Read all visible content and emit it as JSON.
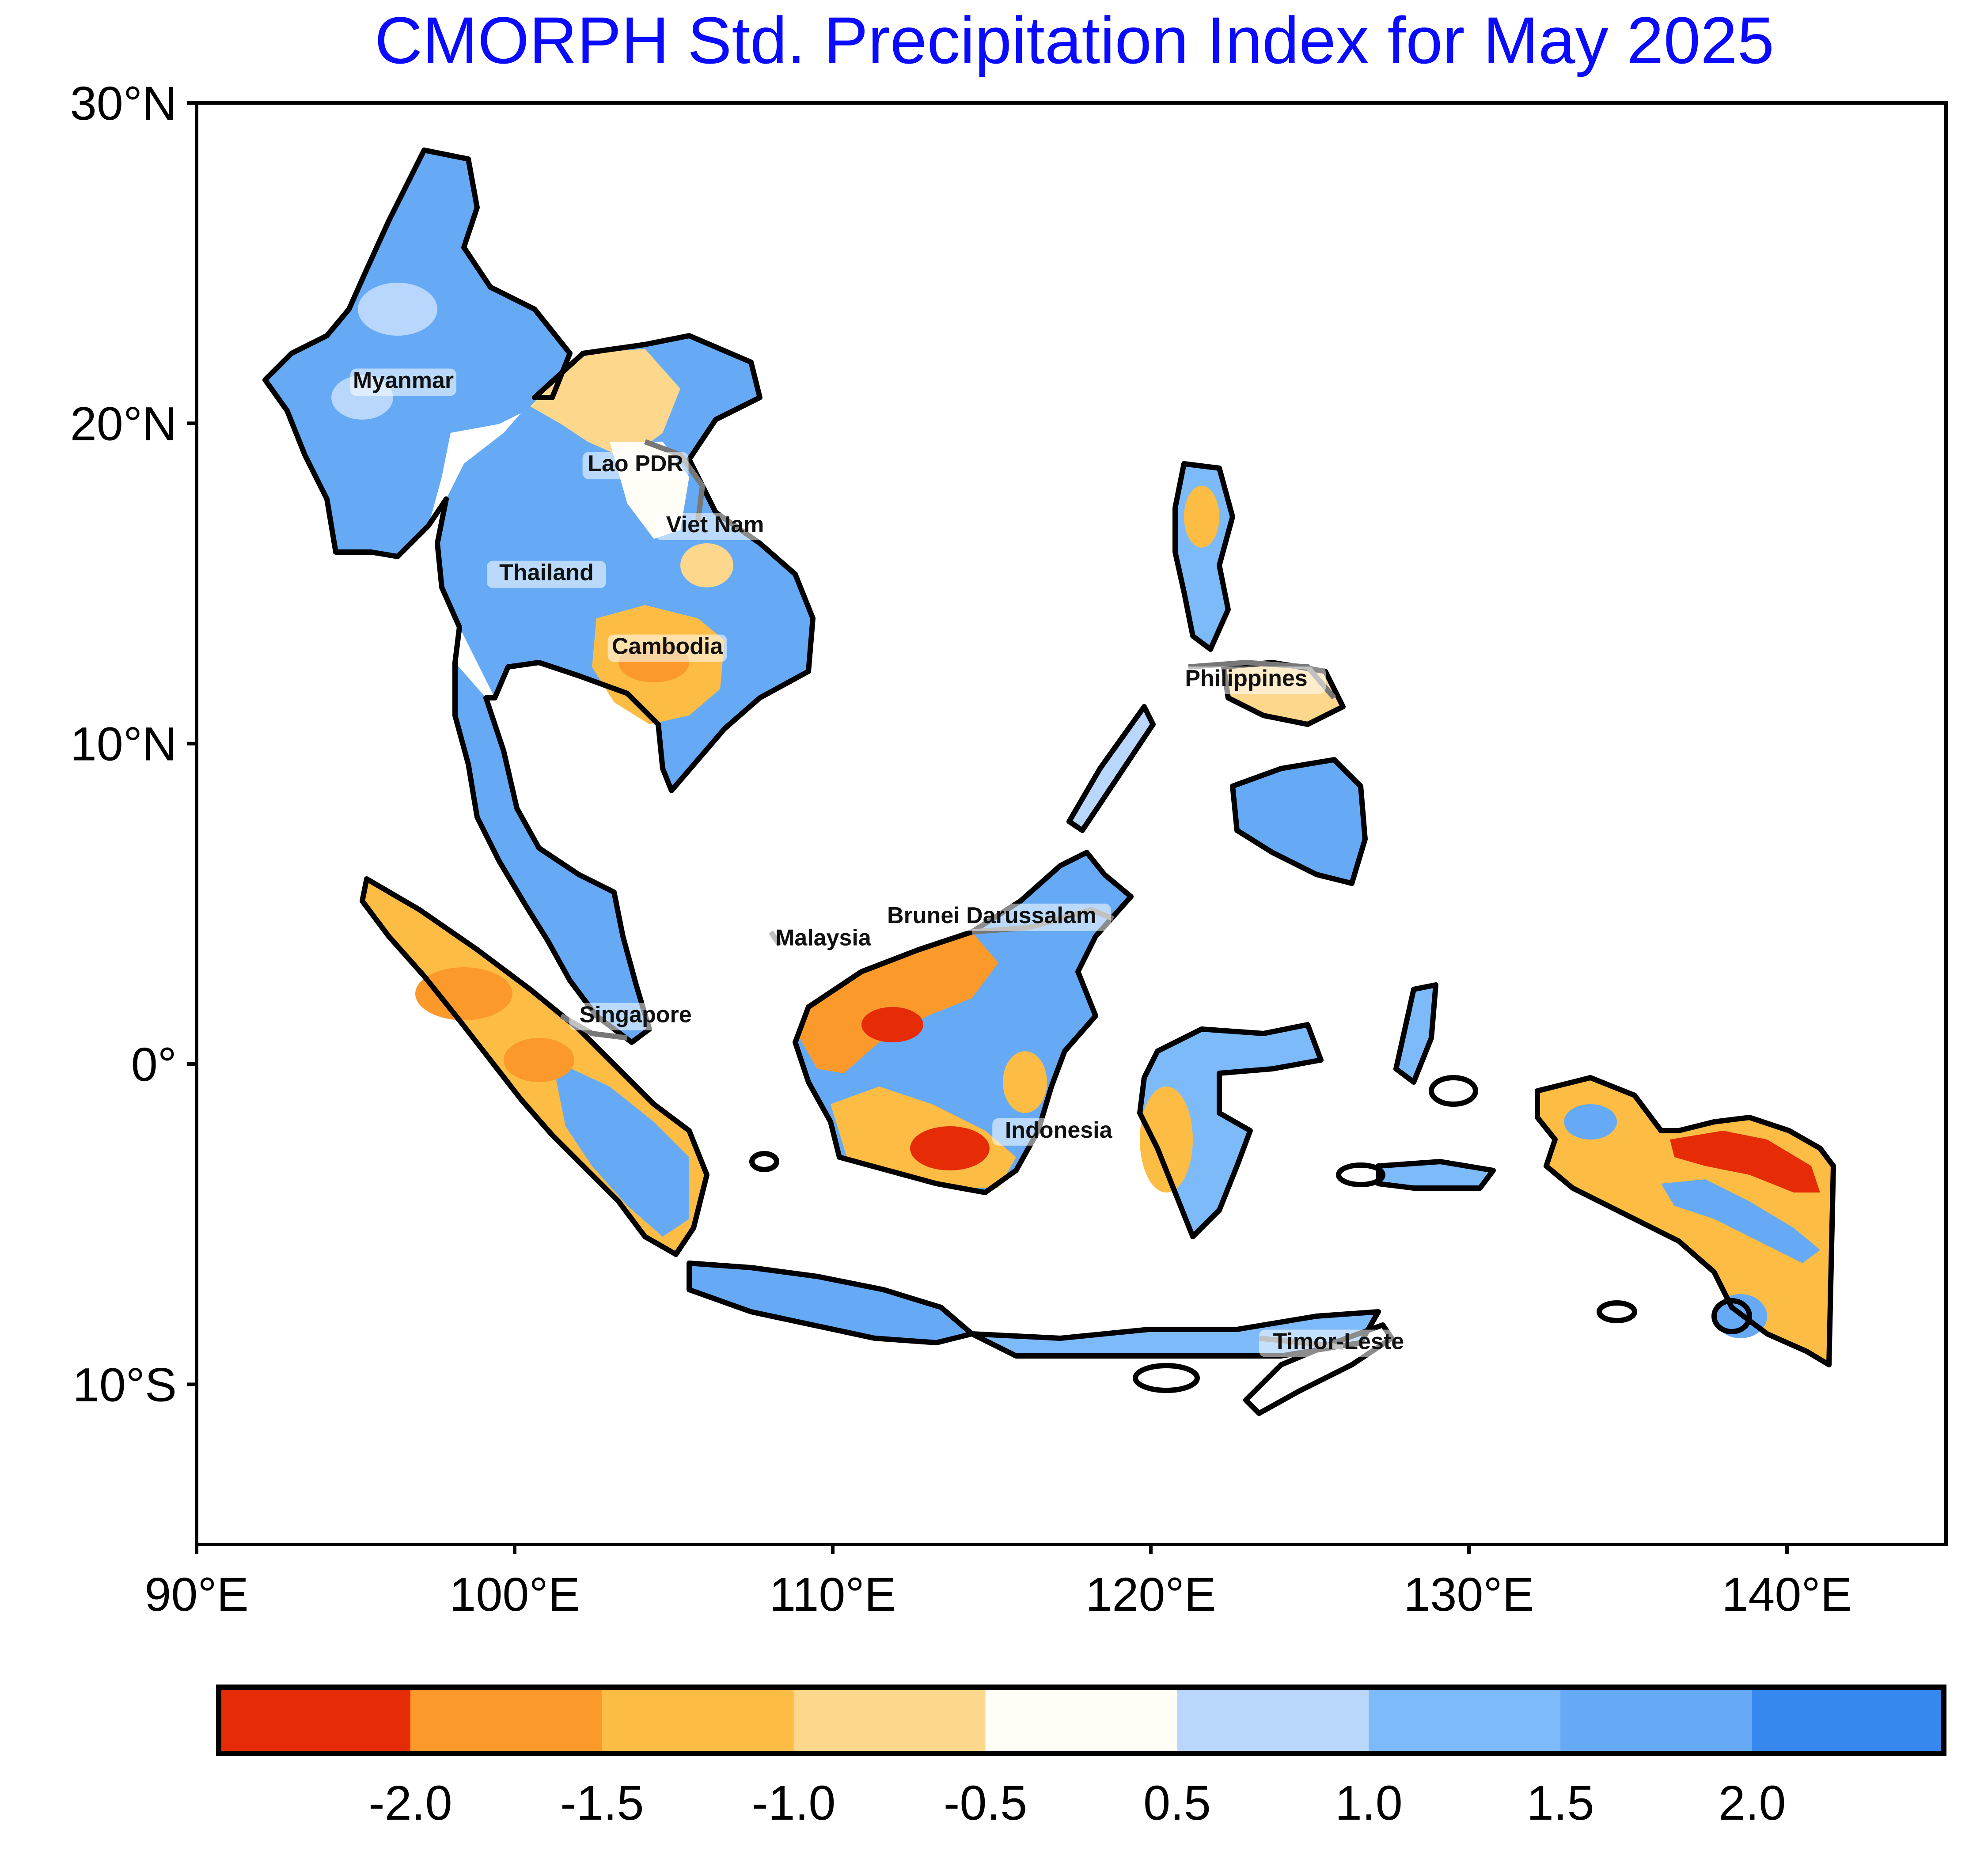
{
  "title": "CMORPH Std. Precipitation Index for May 2025",
  "latitude_ticks": [
    "30°N",
    "20°N",
    "10°N",
    "0°",
    "10°S"
  ],
  "longitude_ticks": [
    "90°E",
    "100°E",
    "110°E",
    "120°E",
    "130°E",
    "140°E"
  ],
  "extent": {
    "lon_min": 90,
    "lon_max": 145,
    "lat_min": -15,
    "lat_max": 30
  },
  "country_labels": [
    {
      "name": "Myanmar",
      "lon": 96.5,
      "lat": 21.1
    },
    {
      "name": "Lao PDR",
      "lon": 103.8,
      "lat": 18.5
    },
    {
      "name": "Viet Nam",
      "lon": 106.3,
      "lat": 16.6
    },
    {
      "name": "Thailand",
      "lon": 101.0,
      "lat": 15.1
    },
    {
      "name": "Cambodia",
      "lon": 104.8,
      "lat": 12.8
    },
    {
      "name": "Philippines",
      "lon": 123.0,
      "lat": 11.8
    },
    {
      "name": "Brunei Darussalam",
      "lon": 115.0,
      "lat": 4.4
    },
    {
      "name": "Malaysia",
      "lon": 109.7,
      "lat": 3.7
    },
    {
      "name": "Singapore",
      "lon": 103.8,
      "lat": 1.3
    },
    {
      "name": "Indonesia",
      "lon": 117.1,
      "lat": -2.3
    },
    {
      "name": "Timor-Leste",
      "lon": 125.9,
      "lat": -8.9
    }
  ],
  "colorbar": {
    "bins": [
      {
        "color": "#e52c06"
      },
      {
        "color": "#fb9a2b"
      },
      {
        "color": "#fdbd45"
      },
      {
        "color": "#fdd78c"
      },
      {
        "color": "#fffdf6"
      },
      {
        "color": "#b9d6fd"
      },
      {
        "color": "#7cbaf9"
      },
      {
        "color": "#66aaf5"
      },
      {
        "color": "#3687ee"
      }
    ],
    "tick_labels": [
      "-2.0",
      "-1.5",
      "-1.0",
      "-0.5",
      "0.5",
      "1.0",
      "1.5",
      "2.0"
    ]
  },
  "spi_regions": [
    {
      "region": "Myanmar",
      "level": "wet"
    },
    {
      "region": "Thailand",
      "level": "wet"
    },
    {
      "region": "Lao PDR",
      "level": "near normal to wet"
    },
    {
      "region": "Cambodia",
      "level": "dry"
    },
    {
      "region": "Southern Viet Nam",
      "level": "wet"
    },
    {
      "region": "Malay Peninsula",
      "level": "wet"
    },
    {
      "region": "Sumatra",
      "level": "mixed dry and wet"
    },
    {
      "region": "Java",
      "level": "wet"
    },
    {
      "region": "Western Borneo",
      "level": "dry"
    },
    {
      "region": "Eastern Borneo",
      "level": "wet"
    },
    {
      "region": "Sulawesi",
      "level": "mixed"
    },
    {
      "region": "Philippines",
      "level": "mostly wet"
    },
    {
      "region": "New Guinea",
      "level": "dry"
    }
  ]
}
